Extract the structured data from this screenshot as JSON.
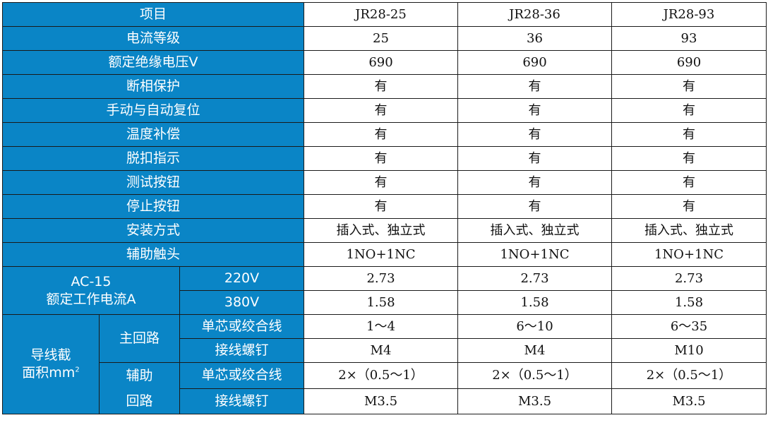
{
  "header": {
    "label": "项目",
    "models": [
      "JR28-25",
      "JR28-36",
      "JR28-93"
    ]
  },
  "rows": [
    {
      "label": "电流等级",
      "values": [
        "25",
        "36",
        "93"
      ]
    },
    {
      "label": "额定绝缘电压V",
      "values": [
        "690",
        "690",
        "690"
      ]
    },
    {
      "label": "断相保护",
      "values": [
        "有",
        "有",
        "有"
      ]
    },
    {
      "label": "手动与自动复位",
      "values": [
        "有",
        "有",
        "有"
      ]
    },
    {
      "label": "温度补偿",
      "values": [
        "有",
        "有",
        "有"
      ]
    },
    {
      "label": "脱扣指示",
      "values": [
        "有",
        "有",
        "有"
      ]
    },
    {
      "label": "测试按钮",
      "values": [
        "有",
        "有",
        "有"
      ]
    },
    {
      "label": "停止按钮",
      "values": [
        "有",
        "有",
        "有"
      ]
    },
    {
      "label": "安装方式",
      "values": [
        "插入式、独立式",
        "插入式、独立式",
        "插入式、独立式"
      ]
    },
    {
      "label": "辅助触头",
      "values": [
        "1NO+1NC",
        "1NO+1NC",
        "1NO+1NC"
      ]
    }
  ],
  "ac15": {
    "label_line1": "AC-15",
    "label_line2": "额定工作电流A",
    "rows": [
      {
        "label": "220V",
        "values": [
          "2.73",
          "2.73",
          "2.73"
        ]
      },
      {
        "label": "380V",
        "values": [
          "1.58",
          "1.58",
          "1.58"
        ]
      }
    ]
  },
  "wire": {
    "label_line1": "导线截",
    "label_line2": "面积mm",
    "label_sup": "2",
    "main": {
      "label": "主回路",
      "rows": [
        {
          "label": "单芯或绞合线",
          "values": [
            "1～4",
            "6～10",
            "6～35"
          ]
        },
        {
          "label": "接线螺钉",
          "values": [
            "M4",
            "M4",
            "M10"
          ]
        }
      ]
    },
    "aux": {
      "label_line1": "辅助",
      "label_line2": "回路",
      "rows": [
        {
          "label": "单芯或绞合线",
          "values": [
            "2×（0.5～1）",
            "2×（0.5～1）",
            "2×（0.5～1）"
          ]
        },
        {
          "label": "接线螺钉",
          "values": [
            "M3.5",
            "M3.5",
            "M3.5"
          ]
        }
      ]
    }
  },
  "colors": {
    "header_bg": "#0a85c6",
    "header_text": "#ffffff",
    "border": "#1a1a1a"
  }
}
